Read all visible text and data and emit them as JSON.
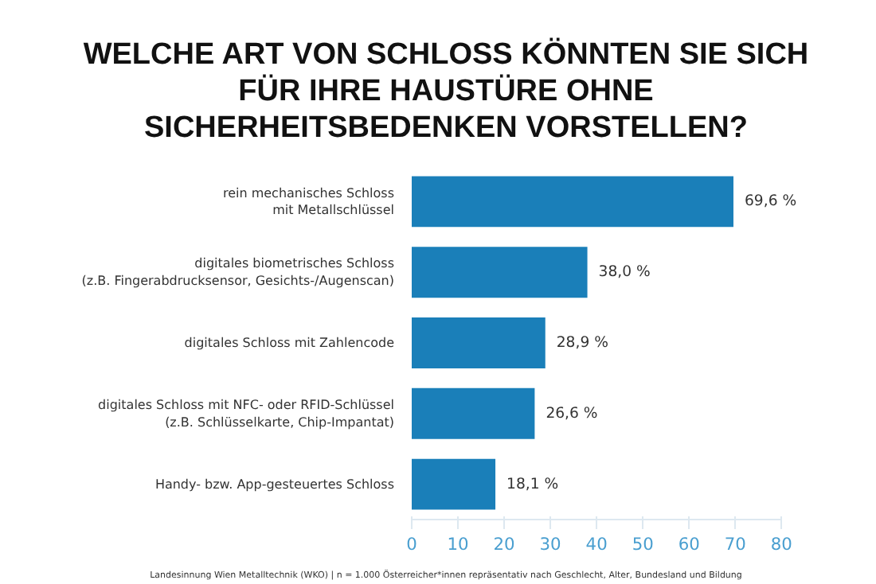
{
  "chart_data": {
    "type": "bar",
    "orientation": "horizontal",
    "title": "WELCHE ART VON SCHLOSS KÖNNTEN SIE SICH\nFÜR IHRE HAUSTÜRE OHNE\nSICHERHEITSBEDENKEN VORSTELLEN?",
    "categories": [
      "rein mechanisches Schloss\nmit Metallschlüssel",
      "digitales biometrisches Schloss\n(z.B. Fingerabdrucksensor, Gesichts-/Augenscan)",
      "digitales Schloss mit Zahlencode",
      "digitales Schloss mit NFC- oder RFID-Schlüssel\n(z.B. Schlüsselkarte, Chip-Impantat)",
      "Handy- bzw. App-gesteuertes Schloss"
    ],
    "values": [
      69.6,
      38.0,
      28.9,
      26.6,
      18.1
    ],
    "value_labels": [
      "69,6 %",
      "38,0 %",
      "28,9 %",
      "26,6 %",
      "18,1 %"
    ],
    "color": "#1a7fb9",
    "xlim": [
      0,
      80
    ],
    "xticks": [
      0,
      10,
      20,
      30,
      40,
      50,
      60,
      70,
      80
    ],
    "grid": false,
    "annotations": [
      "Landesinnung Wien Metalltechnik (WKO) | n = 1.000 Österreicher*innen repräsentativ nach Geschlecht, Alter, Bundesland und Bildung"
    ]
  }
}
